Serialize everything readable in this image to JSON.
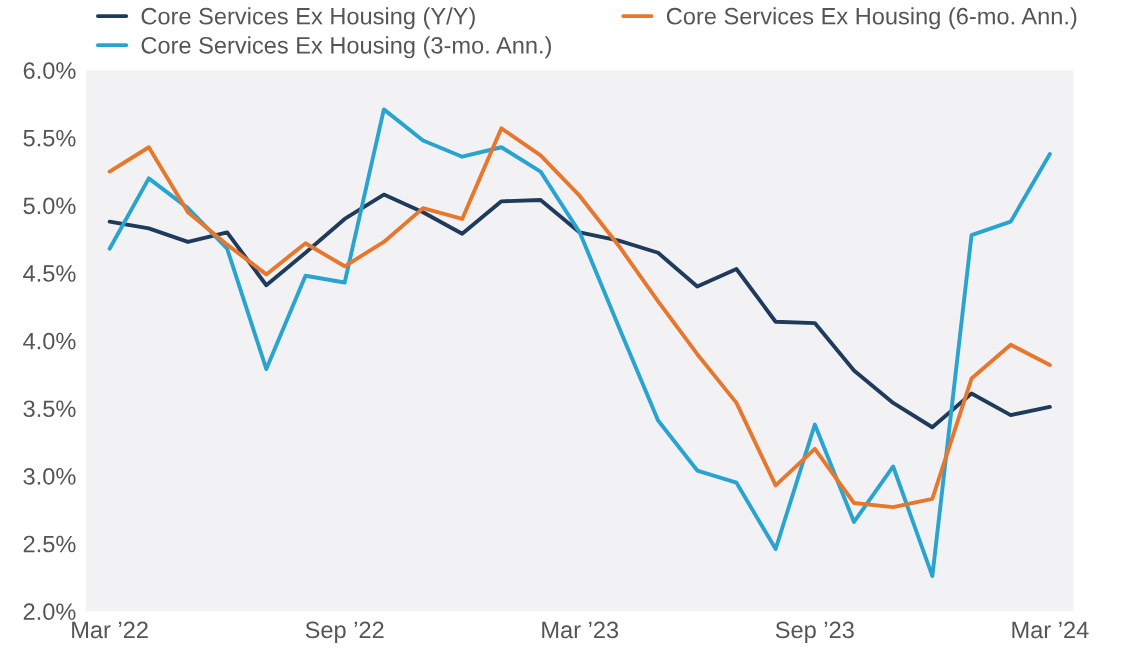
{
  "chart_data": {
    "type": "line",
    "categories": [
      "Mar ’22",
      null,
      null,
      null,
      null,
      null,
      "Sep ’22",
      null,
      null,
      null,
      null,
      null,
      "Mar ’23",
      null,
      null,
      null,
      null,
      null,
      "Sep ’23",
      null,
      null,
      null,
      null,
      null,
      "Mar ’24"
    ],
    "series": [
      {
        "name": "Core Services Ex Housing (Y/Y)",
        "color": "#1f3b5c",
        "values": [
          4.88,
          4.83,
          4.73,
          4.8,
          4.41,
          4.65,
          4.9,
          5.08,
          4.95,
          4.79,
          5.03,
          5.04,
          4.8,
          4.74,
          4.65,
          4.4,
          4.53,
          4.14,
          4.13,
          3.78,
          3.54,
          3.36,
          3.61,
          3.45,
          3.51
        ]
      },
      {
        "name": "Core Services Ex Housing (3-mo. Ann.)",
        "color": "#29a3d0",
        "values": [
          4.68,
          5.2,
          4.98,
          4.68,
          3.79,
          4.48,
          4.43,
          5.71,
          5.48,
          5.36,
          5.43,
          5.25,
          4.8,
          4.1,
          3.41,
          3.04,
          2.95,
          2.46,
          3.38,
          2.66,
          3.07,
          2.26,
          4.78,
          4.88,
          5.38
        ]
      },
      {
        "name": "Core Services Ex Housing (6-mo. Ann.)",
        "color": "#e8772e",
        "values": [
          5.25,
          5.43,
          4.95,
          4.71,
          4.49,
          4.72,
          4.55,
          4.73,
          4.98,
          4.9,
          5.57,
          5.37,
          5.07,
          4.7,
          4.29,
          3.9,
          3.54,
          2.93,
          3.2,
          2.8,
          2.77,
          2.83,
          3.72,
          3.97,
          3.82
        ]
      }
    ],
    "ylim": [
      2.0,
      6.0
    ],
    "yticks": [
      {
        "value": 2.0,
        "label": "2.0%"
      },
      {
        "value": 2.5,
        "label": "2.5%"
      },
      {
        "value": 3.0,
        "label": "3.0%"
      },
      {
        "value": 3.5,
        "label": "3.5%"
      },
      {
        "value": 4.0,
        "label": "4.0%"
      },
      {
        "value": 4.5,
        "label": "4.5%"
      },
      {
        "value": 5.0,
        "label": "5.0%"
      },
      {
        "value": 5.5,
        "label": "5.5%"
      },
      {
        "value": 6.0,
        "label": "6.0%"
      }
    ],
    "legend": "top",
    "grid": false,
    "marker": "none",
    "line_style": "solid"
  }
}
